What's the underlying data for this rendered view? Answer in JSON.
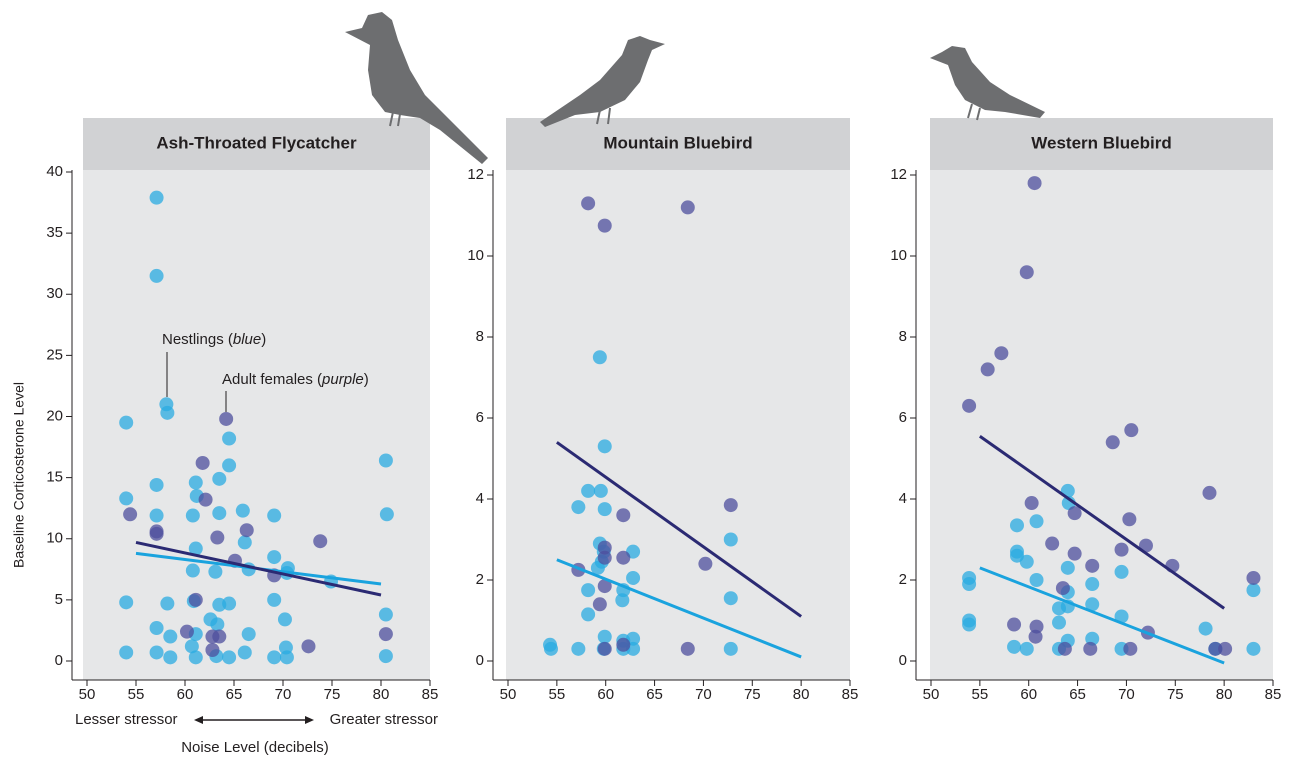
{
  "chart_data": [
    {
      "type": "scatter",
      "title": "Ash-Throated Flycatcher",
      "xlabel": "Noise Level (decibels)",
      "ylabel": "Baseline Corticosterone Level",
      "axis_notes": [
        "Lesser stressor",
        "Greater stressor"
      ],
      "annotations": [
        {
          "parts": [
            "Nestlings (",
            "blue",
            ")"
          ]
        },
        {
          "parts": [
            "Adult females (",
            "purple",
            ")"
          ]
        }
      ],
      "xlim": [
        50,
        85
      ],
      "xticks": [
        50,
        55,
        60,
        65,
        70,
        75,
        80,
        85
      ],
      "ylim": [
        0,
        40
      ],
      "yticks": [
        0,
        5,
        10,
        15,
        20,
        25,
        30,
        35,
        40
      ],
      "series": [
        {
          "color": "#29abe2",
          "x": [
            57.1,
            57.1,
            58.1,
            58.2,
            54,
            64.5,
            64.5,
            80.5,
            61.1,
            57.1,
            61.2,
            63.5,
            54,
            57.1,
            60.8,
            63.5,
            65.9,
            69.1,
            80.6,
            61.1,
            66.1,
            60.8,
            63.1,
            66.5,
            69.1,
            70.5,
            70.4,
            74.9,
            54,
            58.2,
            60.9,
            64.5,
            69.1,
            63.5,
            80.5,
            70.2,
            57.1,
            58.5,
            61.1,
            66.5,
            63.3,
            62.6,
            54,
            57.1,
            58.5,
            61.1,
            60.7,
            63.2,
            64.5,
            66.1,
            69.1,
            70.3,
            70.4,
            80.5
          ],
          "values": [
            37.9,
            31.5,
            21.0,
            20.3,
            19.5,
            18.2,
            16.0,
            16.4,
            14.6,
            14.4,
            13.5,
            14.9,
            13.3,
            11.9,
            11.9,
            12.1,
            12.3,
            11.9,
            12.0,
            9.2,
            9.7,
            7.4,
            7.3,
            7.5,
            8.5,
            7.6,
            7.2,
            6.5,
            4.8,
            4.7,
            4.9,
            4.7,
            5.0,
            4.6,
            3.8,
            3.4,
            2.7,
            2.0,
            2.2,
            2.2,
            3.0,
            3.4,
            0.7,
            0.7,
            0.3,
            0.3,
            1.2,
            0.4,
            0.3,
            0.7,
            0.3,
            1.1,
            0.3,
            0.4
          ]
        },
        {
          "color": "#4e4f9e",
          "x": [
            54.4,
            57.1,
            57.1,
            64.2,
            61.8,
            62.1,
            63.3,
            66.3,
            65.1,
            73.8,
            69.1,
            61.1,
            60.2,
            62.8,
            63.5,
            62.8,
            72.6,
            80.5
          ],
          "values": [
            12.0,
            10.4,
            10.6,
            19.8,
            16.2,
            13.2,
            10.1,
            10.7,
            8.2,
            9.8,
            7.0,
            5.0,
            2.4,
            2.0,
            2.0,
            0.9,
            1.2,
            2.2
          ]
        }
      ],
      "trend_lines": [
        {
          "color": "#1aa3de",
          "x": [
            55,
            80
          ],
          "values": [
            8.8,
            6.3
          ]
        },
        {
          "color": "#2b2a73",
          "x": [
            55,
            80
          ],
          "values": [
            9.7,
            5.4
          ]
        }
      ]
    },
    {
      "type": "scatter",
      "title": "Mountain Bluebird",
      "xlim": [
        50,
        85
      ],
      "xticks": [
        50,
        55,
        60,
        65,
        70,
        75,
        80,
        85
      ],
      "ylim": [
        0,
        12
      ],
      "yticks": [
        0,
        2,
        4,
        6,
        8,
        10,
        12
      ],
      "series": [
        {
          "color": "#29abe2",
          "x": [
            59.4,
            59.9,
            58.2,
            59.5,
            57.2,
            59.9,
            72.8,
            59.4,
            59.8,
            62.8,
            62.8,
            59.6,
            59.2,
            58.2,
            61.8,
            61.7,
            58.2,
            72.8,
            59.9,
            54.3,
            54.4,
            57.2,
            59.8,
            61.8,
            61.8,
            62.8,
            62.8,
            72.8
          ],
          "values": [
            7.5,
            5.3,
            4.2,
            4.2,
            3.8,
            3.75,
            3.0,
            2.9,
            2.7,
            2.7,
            2.05,
            2.45,
            2.3,
            1.75,
            1.75,
            1.5,
            1.15,
            1.55,
            0.6,
            0.4,
            0.3,
            0.3,
            0.3,
            0.5,
            0.3,
            0.55,
            0.3,
            0.3
          ]
        },
        {
          "color": "#4e4f9e",
          "x": [
            58.2,
            59.9,
            68.4,
            61.8,
            72.8,
            59.9,
            59.9,
            57.2,
            61.8,
            70.2,
            59.4,
            59.9,
            59.9,
            68.4,
            61.8
          ],
          "values": [
            11.3,
            10.75,
            11.2,
            3.6,
            3.85,
            2.8,
            2.55,
            2.25,
            2.55,
            2.4,
            1.4,
            1.85,
            0.3,
            0.3,
            0.4
          ]
        }
      ],
      "trend_lines": [
        {
          "color": "#1aa3de",
          "x": [
            55,
            80
          ],
          "values": [
            2.5,
            0.1
          ]
        },
        {
          "color": "#2b2a73",
          "x": [
            55,
            80
          ],
          "values": [
            5.4,
            1.1
          ]
        }
      ]
    },
    {
      "type": "scatter",
      "title": "Western Bluebird",
      "xlim": [
        50,
        85
      ],
      "xticks": [
        50,
        55,
        60,
        65,
        70,
        75,
        80,
        85
      ],
      "ylim": [
        0,
        12
      ],
      "yticks": [
        0,
        2,
        4,
        6,
        8,
        10,
        12
      ],
      "series": [
        {
          "color": "#29abe2",
          "x": [
            64,
            64.1,
            60.8,
            58.8,
            58.8,
            58.8,
            59.8,
            60.8,
            53.9,
            53.9,
            64,
            66.5,
            69.5,
            64,
            64,
            63.1,
            66.5,
            69.5,
            83,
            78.1,
            53.9,
            53.9,
            63.1,
            58.5,
            59.8,
            63.1,
            64,
            66.5,
            69.5,
            79.1,
            83
          ],
          "values": [
            4.2,
            3.9,
            3.45,
            3.35,
            2.7,
            2.6,
            2.45,
            2.0,
            2.05,
            1.9,
            2.3,
            1.9,
            2.2,
            1.7,
            1.35,
            1.3,
            1.4,
            1.1,
            1.75,
            0.8,
            1.0,
            0.9,
            0.95,
            0.35,
            0.3,
            0.3,
            0.5,
            0.55,
            0.3,
            0.3,
            0.3
          ]
        },
        {
          "color": "#4e4f9e",
          "x": [
            60.6,
            59.8,
            53.9,
            55.8,
            57.2,
            68.6,
            70.5,
            78.5,
            60.3,
            64.7,
            70.3,
            62.4,
            64.7,
            69.5,
            72,
            74.7,
            83,
            66.5,
            63.5,
            60.8,
            60.7,
            72.2,
            58.5,
            63.7,
            66.3,
            70.4,
            79.1,
            80.1
          ],
          "values": [
            11.8,
            9.6,
            6.3,
            7.2,
            7.6,
            5.4,
            5.7,
            4.15,
            3.9,
            3.65,
            3.5,
            2.9,
            2.65,
            2.75,
            2.85,
            2.35,
            2.05,
            2.35,
            1.8,
            0.85,
            0.6,
            0.7,
            0.9,
            0.3,
            0.3,
            0.3,
            0.3,
            0.3
          ]
        }
      ],
      "trend_lines": [
        {
          "color": "#1aa3de",
          "x": [
            55,
            80
          ],
          "values": [
            2.3,
            -0.05
          ]
        },
        {
          "color": "#2b2a73",
          "x": [
            55,
            80
          ],
          "values": [
            5.55,
            1.3
          ]
        }
      ]
    }
  ]
}
